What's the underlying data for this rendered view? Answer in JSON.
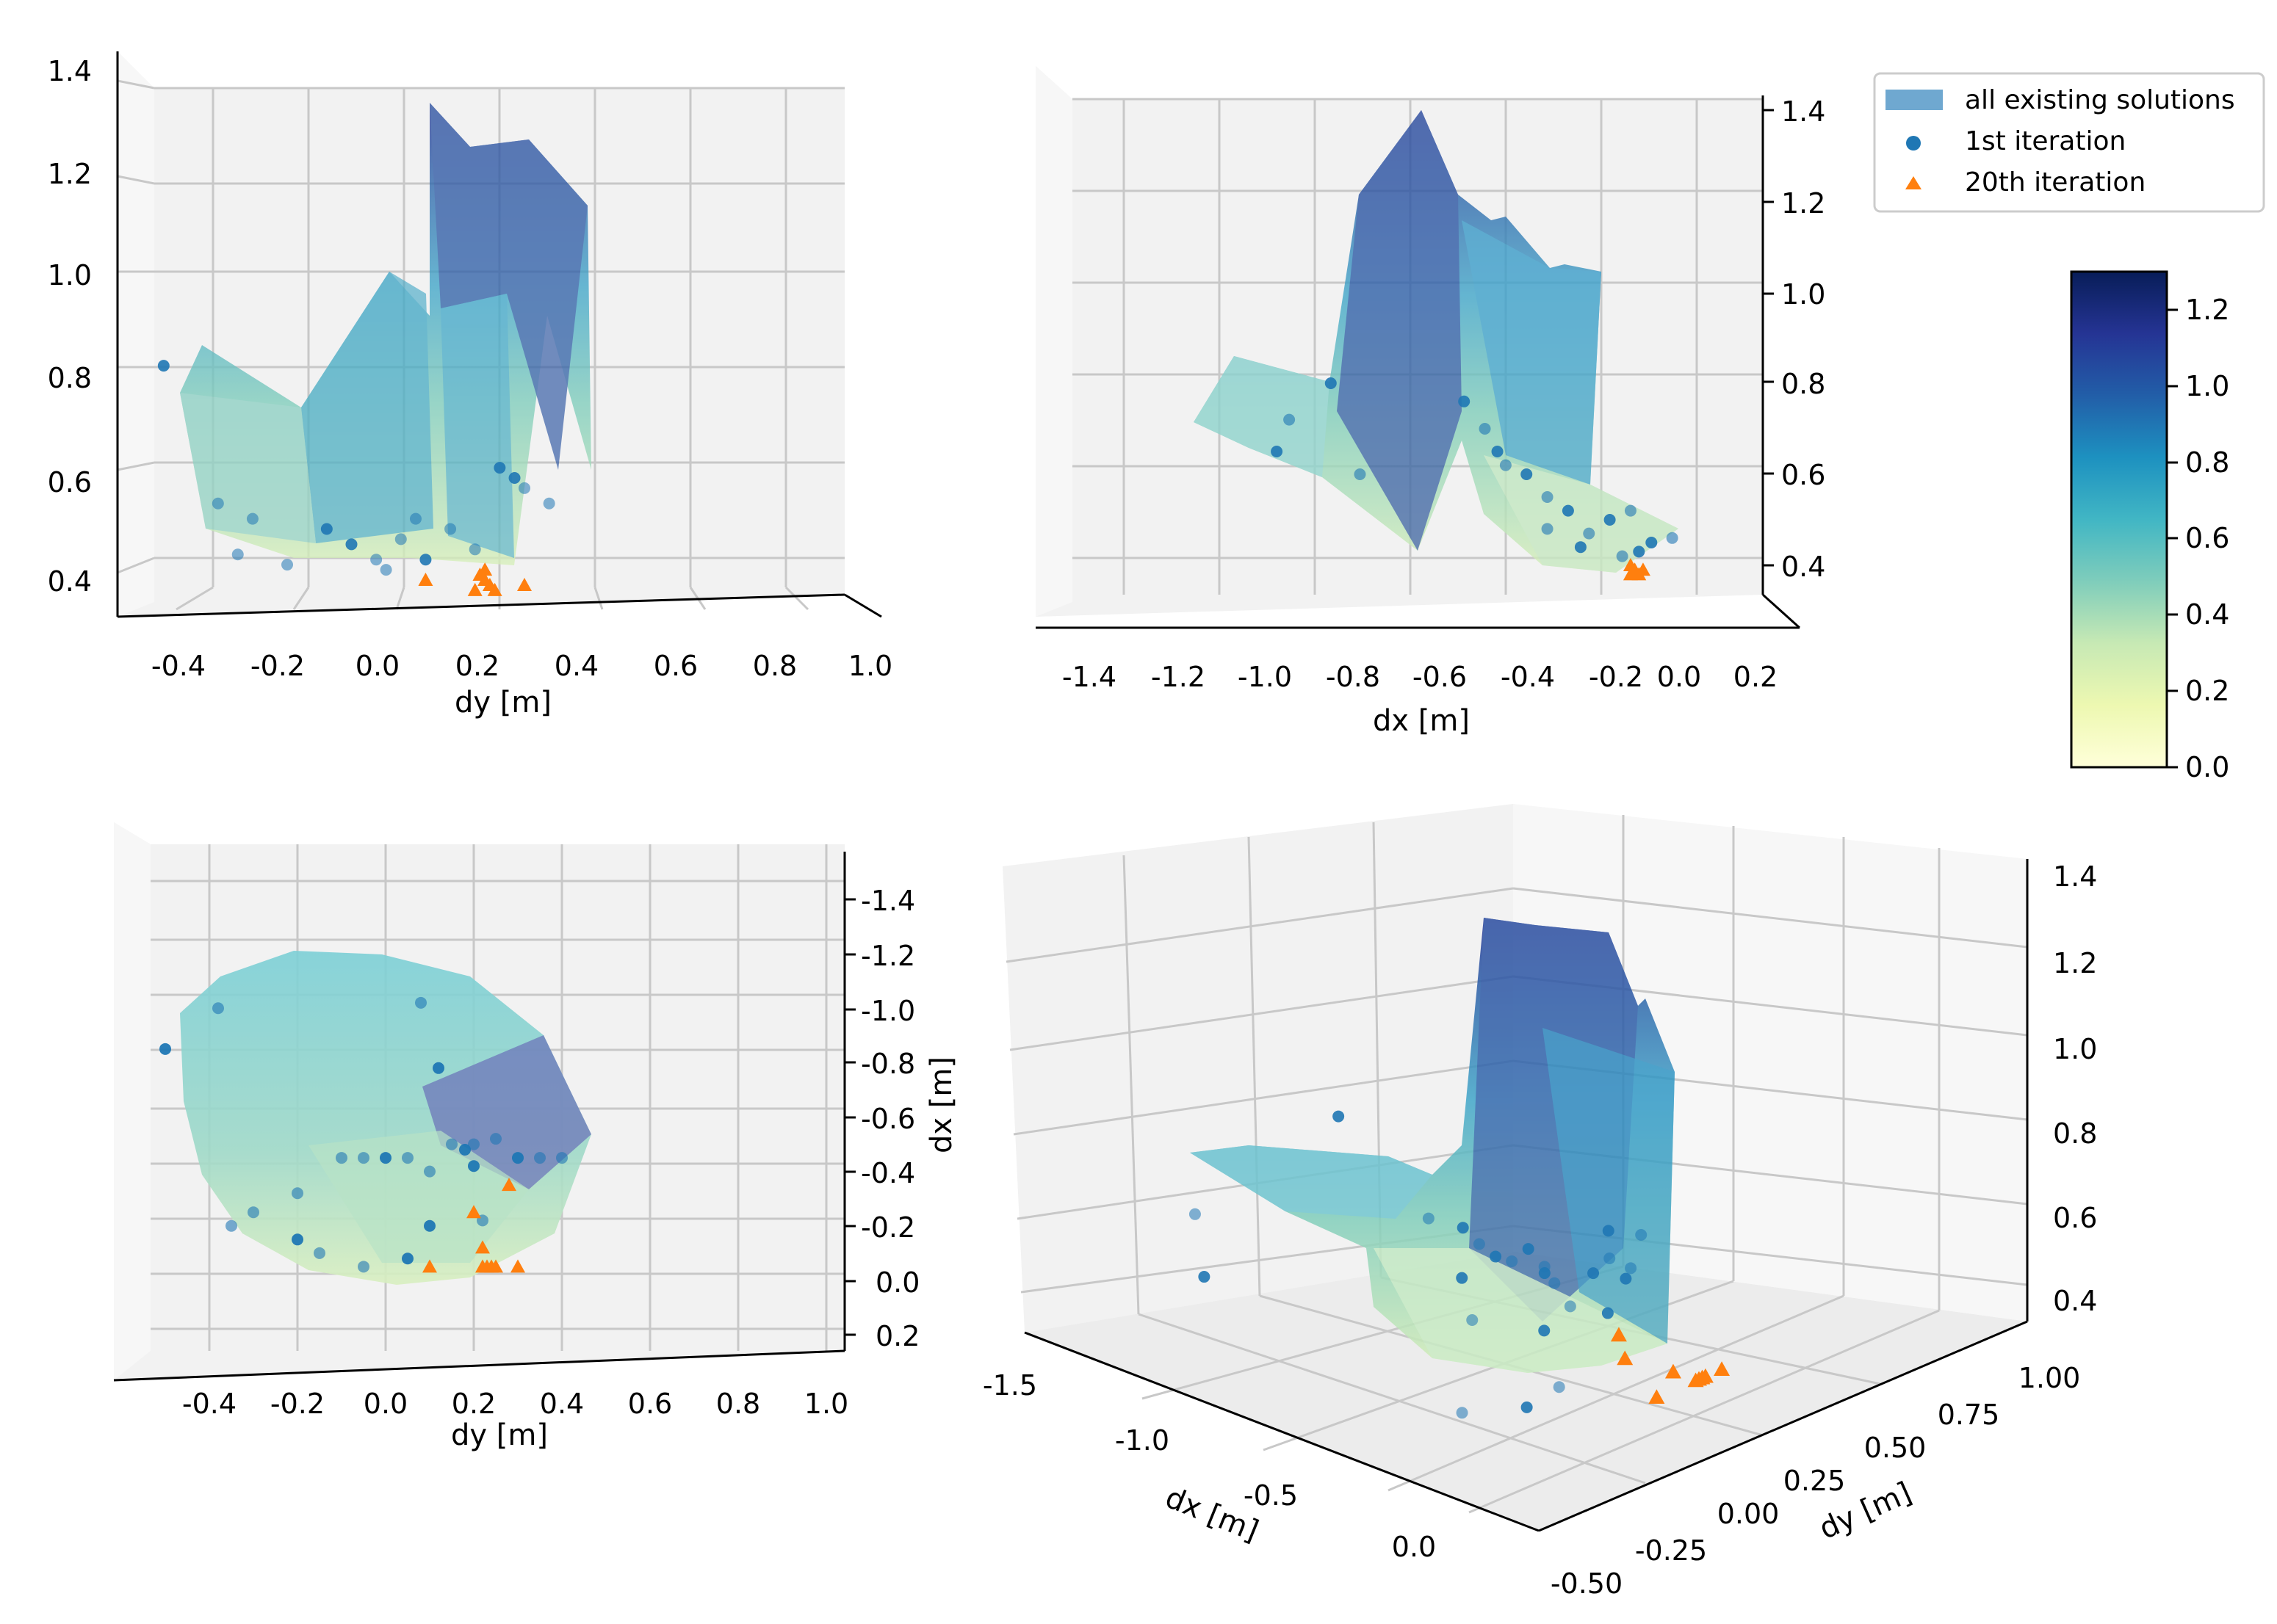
{
  "figure": {
    "legend": {
      "entries": [
        {
          "label": "all existing solutions",
          "marker": "patch",
          "color": "#6fa8d0"
        },
        {
          "label": "1st iteration",
          "marker": "circle",
          "color": "#1f77b4"
        },
        {
          "label": "20th iteration",
          "marker": "triangle",
          "color": "#ff7f0e"
        }
      ]
    },
    "colorbar": {
      "ticks": [
        "0.0",
        "0.2",
        "0.4",
        "0.6",
        "0.8",
        "1.0",
        "1.2"
      ],
      "range": [
        0.0,
        1.3
      ],
      "colormap": "YlGnBu",
      "colors": [
        "#ffffd9",
        "#edf8b1",
        "#c7e9b4",
        "#7fcdbb",
        "#41b6c4",
        "#1d91c0",
        "#225ea8",
        "#253494",
        "#081d58"
      ]
    }
  },
  "chart_data": [
    {
      "type": "scatter3d",
      "view": "side-dy",
      "xlabel": "dy [m]",
      "ylabel": "",
      "x_ticks": [
        "-0.4",
        "-0.2",
        "0.0",
        "0.2",
        "0.4",
        "0.6",
        "0.8",
        "1.0"
      ],
      "z_ticks": [
        "0.4",
        "0.6",
        "0.8",
        "1.0",
        "1.2",
        "1.4"
      ],
      "xlim": [
        -0.55,
        1.05
      ],
      "zlim": [
        0.3,
        1.45
      ],
      "surface_outline": [
        [
          -0.4,
          0.78
        ],
        [
          -0.35,
          0.84
        ],
        [
          -0.15,
          0.72
        ],
        [
          0.05,
          0.98
        ],
        [
          0.12,
          1.35
        ],
        [
          0.2,
          1.18
        ],
        [
          0.32,
          1.28
        ],
        [
          0.43,
          1.13
        ],
        [
          0.44,
          0.57
        ],
        [
          0.3,
          0.85
        ],
        [
          0.22,
          0.45
        ],
        [
          0.1,
          0.4
        ],
        [
          -0.05,
          0.42
        ],
        [
          -0.2,
          0.44
        ],
        [
          -0.4,
          0.6
        ]
      ],
      "iteration_1": [
        [
          -0.43,
          0.82
        ],
        [
          -0.32,
          0.55
        ],
        [
          -0.25,
          0.52
        ],
        [
          -0.05,
          0.47
        ],
        [
          0.0,
          0.44
        ],
        [
          0.05,
          0.48
        ],
        [
          0.1,
          0.44
        ],
        [
          0.15,
          0.5
        ],
        [
          0.2,
          0.46
        ],
        [
          0.25,
          0.62
        ],
        [
          0.3,
          0.58
        ],
        [
          0.35,
          0.55
        ],
        [
          -0.1,
          0.5
        ],
        [
          0.02,
          0.42
        ],
        [
          -0.18,
          0.43
        ],
        [
          0.28,
          0.6
        ],
        [
          0.08,
          0.52
        ],
        [
          -0.28,
          0.45
        ]
      ],
      "iteration_20": [
        [
          0.2,
          0.38
        ],
        [
          0.22,
          0.4
        ],
        [
          0.23,
          0.39
        ],
        [
          0.21,
          0.41
        ],
        [
          0.24,
          0.38
        ],
        [
          0.22,
          0.42
        ],
        [
          0.3,
          0.39
        ],
        [
          0.1,
          0.4
        ]
      ]
    },
    {
      "type": "scatter3d",
      "view": "side-dx",
      "xlabel": "dx [m]",
      "ylabel": "",
      "x_ticks": [
        "-1.4",
        "-1.2",
        "-1.0",
        "-0.8",
        "-0.6",
        "-0.4",
        "-0.2",
        "0.0",
        "0.2"
      ],
      "z_ticks": [
        "0.4",
        "0.6",
        "0.8",
        "1.0",
        "1.2",
        "1.4"
      ],
      "xlim": [
        -1.55,
        0.25
      ],
      "zlim": [
        0.3,
        1.45
      ],
      "surface_outline": [
        [
          -1.15,
          0.72
        ],
        [
          -1.05,
          0.85
        ],
        [
          -0.85,
          0.8
        ],
        [
          -0.75,
          1.2
        ],
        [
          -0.6,
          1.37
        ],
        [
          -0.48,
          1.15
        ],
        [
          -0.42,
          1.05
        ],
        [
          -0.3,
          0.9
        ],
        [
          -0.2,
          1.05
        ],
        [
          -0.1,
          0.98
        ],
        [
          -0.05,
          0.62
        ],
        [
          0.02,
          0.47
        ],
        [
          -0.08,
          0.4
        ],
        [
          -0.25,
          0.38
        ],
        [
          -0.4,
          0.55
        ],
        [
          -0.5,
          0.75
        ],
        [
          -0.6,
          0.45
        ],
        [
          -0.8,
          0.55
        ],
        [
          -1.0,
          0.62
        ]
      ],
      "iteration_1": [
        [
          -0.95,
          0.65
        ],
        [
          -0.92,
          0.72
        ],
        [
          -0.82,
          0.8
        ],
        [
          -0.75,
          0.6
        ],
        [
          -0.5,
          0.76
        ],
        [
          -0.45,
          0.7
        ],
        [
          -0.42,
          0.65
        ],
        [
          -0.4,
          0.62
        ],
        [
          -0.35,
          0.6
        ],
        [
          -0.3,
          0.55
        ],
        [
          -0.25,
          0.52
        ],
        [
          -0.2,
          0.47
        ],
        [
          -0.15,
          0.5
        ],
        [
          -0.1,
          0.52
        ],
        [
          -0.05,
          0.45
        ],
        [
          0.0,
          0.46
        ],
        [
          -0.22,
          0.44
        ],
        [
          -0.12,
          0.42
        ],
        [
          -0.08,
          0.43
        ],
        [
          -0.3,
          0.48
        ]
      ],
      "iteration_20": [
        [
          -0.1,
          0.38
        ],
        [
          -0.09,
          0.39
        ],
        [
          -0.08,
          0.38
        ],
        [
          -0.1,
          0.4
        ],
        [
          -0.07,
          0.39
        ]
      ]
    },
    {
      "type": "scatter3d",
      "view": "top",
      "xlabel": "dy [m]",
      "ylabel": "dx [m]",
      "x_ticks": [
        "-0.4",
        "-0.2",
        "0.0",
        "0.2",
        "0.4",
        "0.6",
        "0.8",
        "1.0"
      ],
      "y_ticks": [
        "-1.4",
        "-1.2",
        "-1.0",
        "-0.8",
        "-0.6",
        "-0.4",
        "-0.2",
        "0.0",
        "0.2"
      ],
      "xlim": [
        -0.55,
        1.05
      ],
      "ylim": [
        -1.5,
        0.3
      ],
      "surface_outline": [
        [
          -0.47,
          -1.05
        ],
        [
          -0.35,
          -1.15
        ],
        [
          -0.2,
          -1.2
        ],
        [
          0.0,
          -1.15
        ],
        [
          0.2,
          -1.05
        ],
        [
          0.35,
          -0.85
        ],
        [
          0.45,
          -0.5
        ],
        [
          0.4,
          -0.35
        ],
        [
          0.25,
          -0.15
        ],
        [
          0.1,
          0.0
        ],
        [
          -0.05,
          0.05
        ],
        [
          -0.2,
          0.0
        ],
        [
          -0.35,
          -0.15
        ],
        [
          -0.46,
          -0.4
        ]
      ],
      "iteration_1": [
        [
          -0.5,
          -0.85
        ],
        [
          -0.38,
          -1.0
        ],
        [
          0.08,
          -1.02
        ],
        [
          0.12,
          -0.78
        ],
        [
          -0.1,
          -0.45
        ],
        [
          -0.05,
          -0.45
        ],
        [
          0.0,
          -0.45
        ],
        [
          0.05,
          -0.45
        ],
        [
          0.15,
          -0.5
        ],
        [
          0.18,
          -0.48
        ],
        [
          0.2,
          -0.5
        ],
        [
          0.25,
          -0.52
        ],
        [
          0.3,
          -0.45
        ],
        [
          0.35,
          -0.45
        ],
        [
          0.4,
          -0.45
        ],
        [
          0.2,
          -0.42
        ],
        [
          0.1,
          -0.4
        ],
        [
          -0.3,
          -0.25
        ],
        [
          -0.2,
          -0.15
        ],
        [
          -0.15,
          -0.1
        ],
        [
          -0.05,
          -0.05
        ],
        [
          0.05,
          -0.08
        ],
        [
          -0.35,
          -0.2
        ],
        [
          -0.2,
          -0.32
        ],
        [
          0.1,
          -0.2
        ],
        [
          0.22,
          -0.22
        ]
      ],
      "iteration_20": [
        [
          0.2,
          -0.25
        ],
        [
          0.22,
          -0.12
        ],
        [
          0.23,
          -0.05
        ],
        [
          0.22,
          -0.05
        ],
        [
          0.24,
          -0.05
        ],
        [
          0.25,
          -0.05
        ],
        [
          0.3,
          -0.05
        ],
        [
          0.1,
          -0.05
        ],
        [
          0.28,
          -0.35
        ]
      ]
    },
    {
      "type": "scatter3d",
      "view": "perspective",
      "xlabel": "dx [m]",
      "ylabel": "dy [m]",
      "x_ticks": [
        "-1.5",
        "-1.0",
        "-0.5",
        "0.0"
      ],
      "y_ticks": [
        "-0.50",
        "-0.25",
        "0.00",
        "0.25",
        "0.50",
        "0.75",
        "1.00"
      ],
      "z_ticks": [
        "0.4",
        "0.6",
        "0.8",
        "1.0",
        "1.2",
        "1.4"
      ],
      "zlim": [
        0.3,
        1.45
      ],
      "iteration_1": "same as other panels",
      "iteration_20": "same as other panels"
    }
  ]
}
